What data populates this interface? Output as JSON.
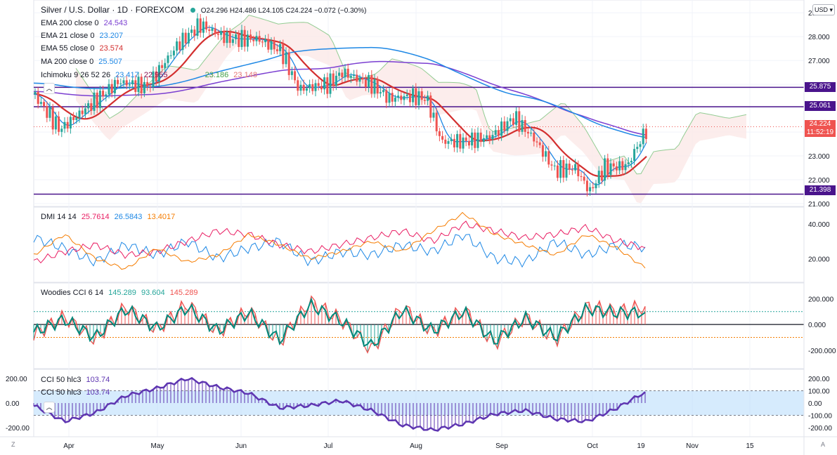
{
  "header": {
    "symbol": "Silver / U.S. Dollar · 1D · FOREXCOM",
    "ohlc": "O24.296  H24.486  L24.105  C24.224  −0.072 (−0.30%)",
    "currency": "USD"
  },
  "legends": {
    "ema200": {
      "label": "EMA 200 close 0",
      "value": "24.543",
      "color": "#7b3fd1"
    },
    "ema21": {
      "label": "EMA 21 close 0",
      "value": "23.207",
      "color": "#1e88e5"
    },
    "ema55": {
      "label": "EMA 55 close 0",
      "value": "23.574",
      "color": "#d32f2f"
    },
    "ma200": {
      "label": "MA 200 close 0",
      "value": "25.507",
      "color": "#1e88e5"
    },
    "ichimoku": {
      "label": "Ichimoku 9 26 52 26",
      "v1": "23.417",
      "v2": "22.955",
      "v3": "23.186",
      "v4": "23.148"
    },
    "dmi": {
      "label": "DMI 14 14",
      "v1": "25.7614",
      "v2": "26.5843",
      "v3": "13.4017"
    },
    "woodies": {
      "label": "Woodies CCI 6 14",
      "v1": "145.289",
      "v2": "93.604",
      "v3": "145.289"
    },
    "cci1": {
      "label": "CCI 50 hlc3",
      "value": "103.74"
    },
    "cci2": {
      "label": "CCI 50 hlc3",
      "value": "103.74"
    }
  },
  "price_labels": {
    "p25875": "25.875",
    "p25061": "25.061",
    "last": "24.224",
    "countdown": "11:52:19",
    "p21398": "21.398"
  },
  "colors": {
    "up": "#26a69a",
    "down": "#ef5350",
    "level_line": "#4a148c",
    "grid": "#f0f3fa",
    "dmi_plus": "#1e88e5",
    "dmi_minus": "#e91e63",
    "adx": "#f57c00",
    "cci_fill": "#bbdefb",
    "cci_line": "#5e35b1"
  },
  "chart_data": [
    {
      "type": "candlestick",
      "title": "Silver / U.S. Dollar · 1D · FOREXCOM",
      "x_ticks": [
        "Apr",
        "May",
        "Jun",
        "Jul",
        "Aug",
        "Sep",
        "Oct",
        "19",
        "Nov",
        "15"
      ],
      "y_ticks": [
        "29.000",
        "28.000",
        "27.000",
        "26.000",
        "25.000",
        "24.000",
        "23.000",
        "22.000",
        "21.000"
      ],
      "ylim": [
        21,
        29.3
      ],
      "horizontal_levels": [
        25.875,
        25.061,
        21.398
      ],
      "last_close": 24.224,
      "close_path": [
        {
          "date": "2021-03-22",
          "close": 25.6
        },
        {
          "date": "2021-03-31",
          "close": 24.1
        },
        {
          "date": "2021-04-09",
          "close": 25.0
        },
        {
          "date": "2021-04-20",
          "close": 26.1
        },
        {
          "date": "2021-04-30",
          "close": 25.9
        },
        {
          "date": "2021-05-10",
          "close": 27.6
        },
        {
          "date": "2021-05-18",
          "close": 28.5
        },
        {
          "date": "2021-05-28",
          "close": 27.9
        },
        {
          "date": "2021-06-07",
          "close": 27.9
        },
        {
          "date": "2021-06-15",
          "close": 27.4
        },
        {
          "date": "2021-06-21",
          "close": 25.8
        },
        {
          "date": "2021-07-01",
          "close": 26.0
        },
        {
          "date": "2021-07-06",
          "close": 26.5
        },
        {
          "date": "2021-07-16",
          "close": 26.0
        },
        {
          "date": "2021-07-22",
          "close": 25.4
        },
        {
          "date": "2021-07-30",
          "close": 25.5
        },
        {
          "date": "2021-08-04",
          "close": 25.4
        },
        {
          "date": "2021-08-09",
          "close": 23.6
        },
        {
          "date": "2021-08-17",
          "close": 23.6
        },
        {
          "date": "2021-08-26",
          "close": 23.8
        },
        {
          "date": "2021-09-03",
          "close": 24.6
        },
        {
          "date": "2021-09-10",
          "close": 23.7
        },
        {
          "date": "2021-09-17",
          "close": 22.4
        },
        {
          "date": "2021-09-24",
          "close": 22.5
        },
        {
          "date": "2021-09-29",
          "close": 21.5
        },
        {
          "date": "2021-10-04",
          "close": 22.5
        },
        {
          "date": "2021-10-12",
          "close": 22.6
        },
        {
          "date": "2021-10-14",
          "close": 23.1
        },
        {
          "date": "2021-10-19",
          "close": 24.224
        }
      ]
    },
    {
      "type": "line",
      "title": "DMI 14 14",
      "y_ticks": [
        "40.000",
        "20.000"
      ],
      "ylim": [
        8,
        48
      ],
      "series": [
        {
          "values": [
            32,
            26,
            18,
            28,
            22,
            30,
            20,
            26,
            30,
            18,
            24,
            22,
            28,
            24,
            34,
            20,
            18,
            30,
            22,
            28,
            26.58
          ]
        },
        {
          "values": [
            18,
            24,
            28,
            22,
            24,
            30,
            36,
            34,
            28,
            24,
            28,
            32,
            36,
            30,
            40,
            36,
            32,
            34,
            38,
            30,
            25.76
          ]
        },
        {
          "values": [
            22,
            34,
            20,
            14,
            26,
            18,
            22,
            34,
            28,
            20,
            24,
            30,
            24,
            36,
            46,
            34,
            28,
            22,
            34,
            26,
            13.4
          ]
        }
      ]
    },
    {
      "type": "line",
      "title": "Woodies CCI 6 14",
      "y_ticks": [
        "200.000",
        "0.000",
        "-200.000"
      ],
      "ylim": [
        -320,
        300
      ],
      "series": [
        {
          "values": [
            -80,
            60,
            -120,
            140,
            -40,
            160,
            -60,
            110,
            -140,
            180,
            40,
            -200,
            140,
            -60,
            120,
            -150,
            60,
            -120,
            140,
            100,
            145.289
          ]
        },
        {
          "values": [
            -60,
            40,
            -100,
            120,
            -30,
            130,
            -50,
            90,
            -120,
            150,
            30,
            -170,
            110,
            -50,
            100,
            -130,
            50,
            -100,
            120,
            90,
            93.604
          ]
        }
      ]
    },
    {
      "type": "area",
      "title": "CCI 50 hlc3",
      "y_ticks": [
        "200.00",
        "100.00",
        "0.00",
        "-100.00",
        "-200.00"
      ],
      "ylim": [
        -240,
        240
      ],
      "series": [
        {
          "values": [
            -20,
            -150,
            -80,
            60,
            120,
            200,
            130,
            80,
            -40,
            -20,
            20,
            -60,
            -180,
            -220,
            -170,
            -90,
            -60,
            -130,
            -150,
            -40,
            103.74
          ]
        }
      ]
    }
  ]
}
